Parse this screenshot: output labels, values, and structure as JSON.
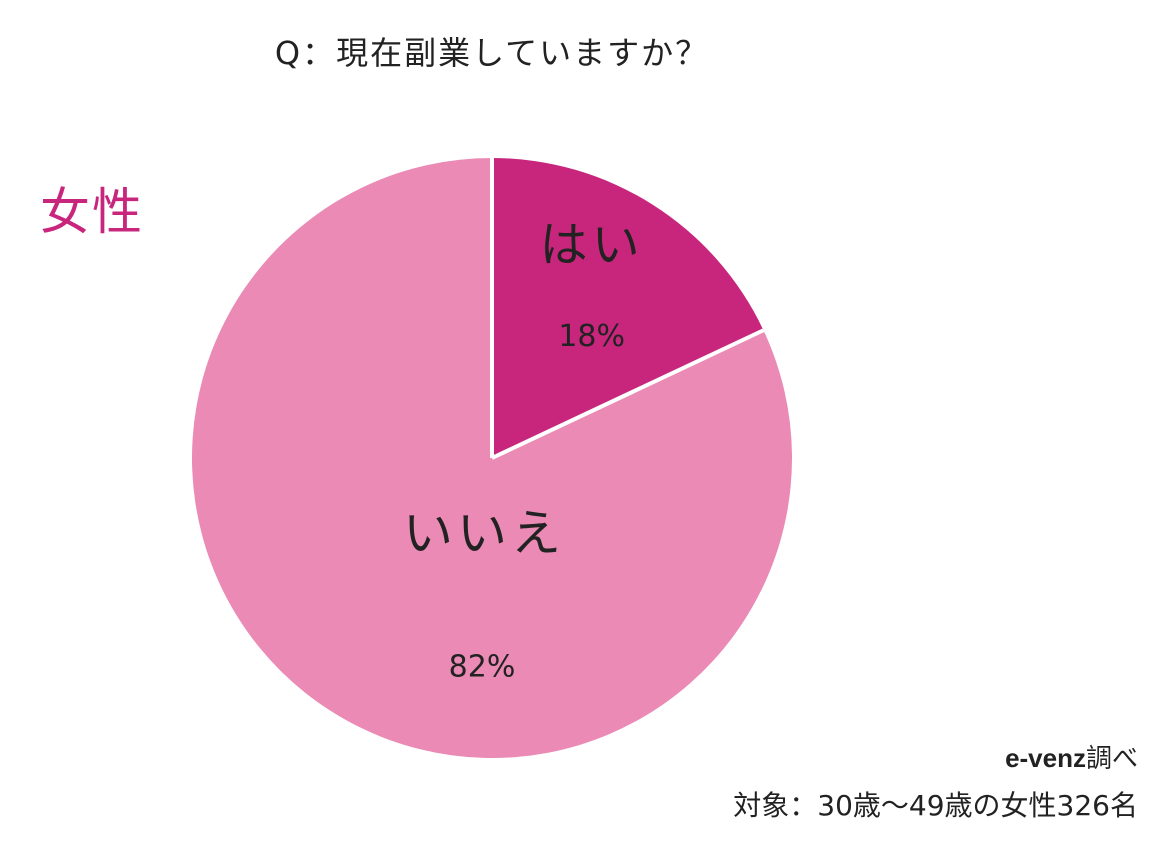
{
  "title": "Q：現在副業していますか？",
  "gender_label": "女性",
  "credit": {
    "brand": "e-venz",
    "suffix": "調べ"
  },
  "target": "対象：30歳〜49歳の女性326名",
  "colors": {
    "yes": "#c8267d",
    "no": "#ea8ab5",
    "gender_label": "#c8267d",
    "text": "#222222",
    "separator": "#ffffff"
  },
  "chart_data": {
    "type": "pie",
    "title": "Q：現在副業していますか？",
    "slices": [
      {
        "label": "はい",
        "value": 18,
        "value_label": "18%",
        "color": "#c8267d"
      },
      {
        "label": "いいえ",
        "value": 82,
        "value_label": "82%",
        "color": "#ea8ab5"
      }
    ],
    "start": "12 o'clock",
    "direction": "clockwise"
  }
}
